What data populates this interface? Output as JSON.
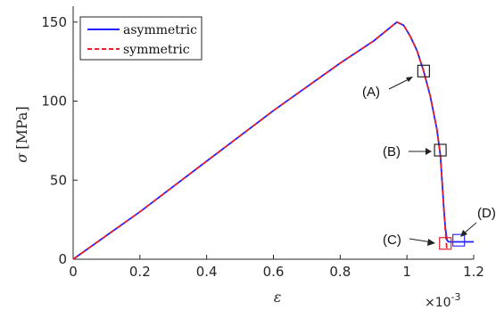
{
  "chart_data": {
    "type": "line",
    "xlabel": "ε",
    "x_multiplier_label": "×10",
    "x_multiplier_exponent": "-3",
    "ylabel_symbol": "σ",
    "ylabel_unit": "[MPa]",
    "xlim": [
      0,
      1.2
    ],
    "ylim": [
      0,
      160
    ],
    "x_ticks": [
      0,
      0.2,
      0.4,
      0.6,
      0.8,
      1,
      1.2
    ],
    "x_tick_labels": [
      "0",
      "0.2",
      "0.4",
      "0.6",
      "0.8",
      "1",
      "1.2"
    ],
    "y_ticks": [
      0,
      50,
      100,
      150
    ],
    "y_tick_labels": [
      "0",
      "50",
      "100",
      "150"
    ],
    "grid": false,
    "legend_position": "top-left",
    "series": [
      {
        "name": "asymmetric",
        "color": "#1f1fff",
        "dash": "solid",
        "x": [
          0,
          0.2,
          0.4,
          0.6,
          0.8,
          0.9,
          0.97,
          0.99,
          1.01,
          1.03,
          1.05,
          1.07,
          1.09,
          1.1,
          1.105,
          1.11,
          1.115,
          1.12,
          1.125,
          1.13,
          1.15,
          1.2
        ],
        "y": [
          0,
          30,
          62,
          94,
          124,
          138,
          150,
          148,
          141,
          132,
          119,
          103,
          82,
          66,
          50,
          34,
          20,
          12,
          11,
          11,
          11,
          11
        ]
      },
      {
        "name": "symmetric",
        "color": "#e8202a",
        "dash": "dashed",
        "x": [
          0,
          0.2,
          0.4,
          0.6,
          0.8,
          0.9,
          0.97,
          0.99,
          1.01,
          1.03,
          1.05,
          1.07,
          1.09,
          1.1,
          1.105,
          1.11,
          1.115,
          1.12
        ],
        "y": [
          0,
          30,
          62,
          94,
          124,
          138,
          150,
          148,
          141,
          132,
          119,
          103,
          82,
          66,
          50,
          34,
          18,
          5
        ]
      }
    ],
    "markers": [
      {
        "label": "(A)",
        "x": 1.05,
        "y": 119,
        "color": "#222222"
      },
      {
        "label": "(B)",
        "x": 1.1,
        "y": 69,
        "color": "#222222"
      },
      {
        "label": "(C)",
        "x": 1.115,
        "y": 10,
        "color": "#e8202a"
      },
      {
        "label": "(D)",
        "x": 1.155,
        "y": 12,
        "color": "#3333ff"
      }
    ]
  }
}
